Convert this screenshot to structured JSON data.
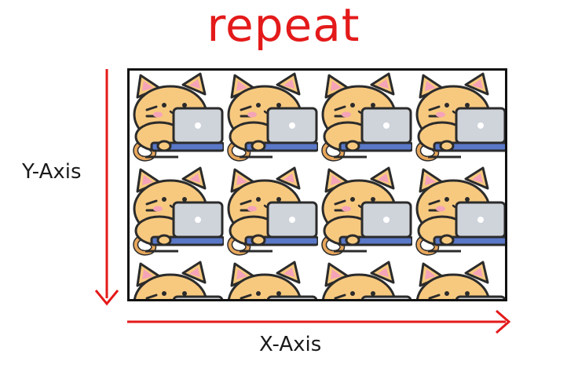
{
  "title": "repeat",
  "y_axis_label": "Y-Axis",
  "x_axis_label": "X-Axis",
  "colors": {
    "accent": "#e41a1a",
    "frame": "#111111",
    "cat_fur": "#f7c97f",
    "cat_ear_inner": "#f5a3b8",
    "laptop": "#cfd3da",
    "laptop_base": "#5a78c8"
  },
  "tile": {
    "icon": "cat-with-laptop-icon",
    "columns_visible": 4,
    "rows_visible": 3
  }
}
